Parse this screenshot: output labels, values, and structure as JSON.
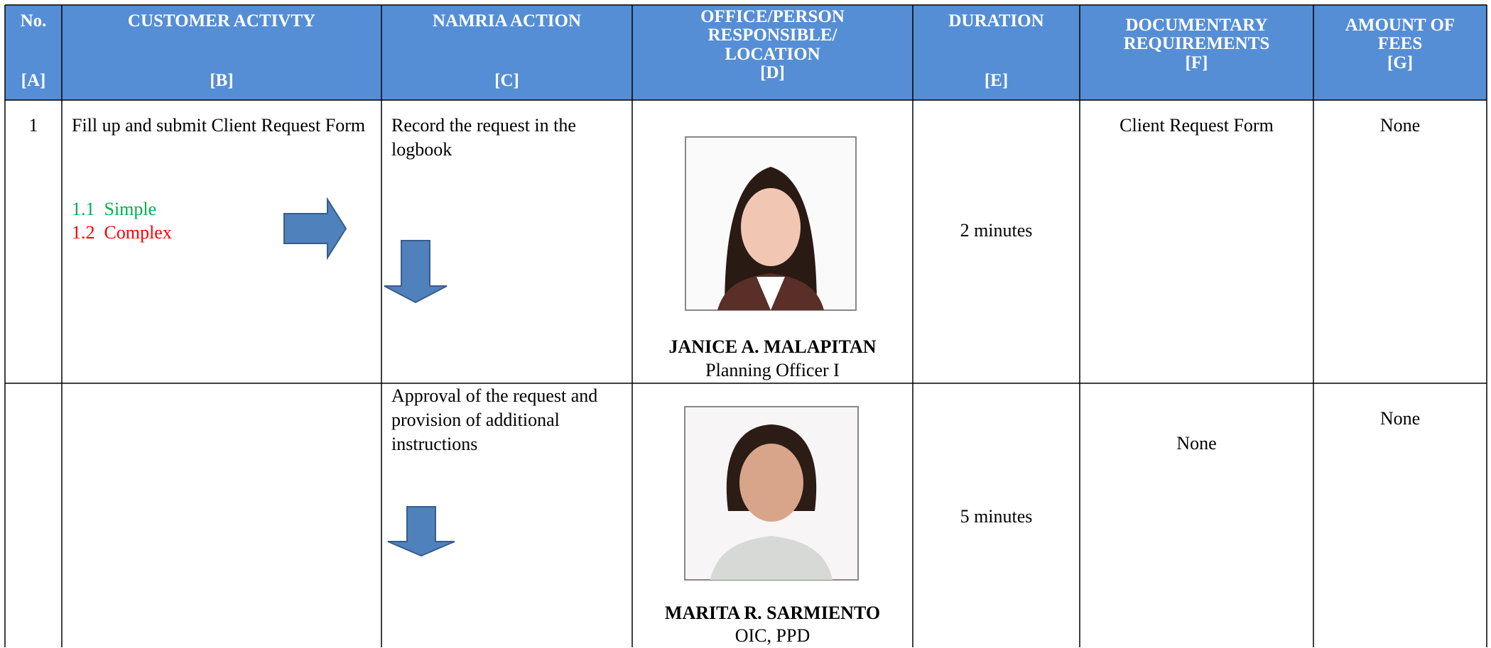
{
  "table": {
    "header": [
      {
        "title": "No.",
        "code": "[A]"
      },
      {
        "title": "CUSTOMER ACTIVTY",
        "code": "[B]"
      },
      {
        "title": "NAMRIA ACTION",
        "code": "[C]"
      },
      {
        "title": "OFFICE/PERSON RESPONSIBLE/ LOCATION",
        "code": "[D]"
      },
      {
        "title": "DURATION",
        "code": "[E]"
      },
      {
        "title": "DOCUMENTARY REQUIREMENTS",
        "code": "[F]"
      },
      {
        "title": "AMOUNT OF FEES",
        "code": "[G]"
      }
    ],
    "rows": [
      {
        "no": "1",
        "activity": "Fill up and submit Client Request Form",
        "options": [
          {
            "number": "1.1",
            "label": "Simple"
          },
          {
            "number": "1.2",
            "label": "Complex"
          }
        ],
        "action": "Record the request in the logbook",
        "person": {
          "name": "JANICE A. MALAPITAN",
          "position": "Planning Officer I"
        },
        "duration": "2 minutes",
        "requirements": "Client Request Form",
        "fees": "None"
      },
      {
        "action": "Approval of the request and provision of additional instructions",
        "person": {
          "name": "MARITA R. SARMIENTO",
          "position": "OIC, PPD"
        },
        "duration": "5 minutes",
        "requirements": "None",
        "fees": "None"
      }
    ]
  }
}
